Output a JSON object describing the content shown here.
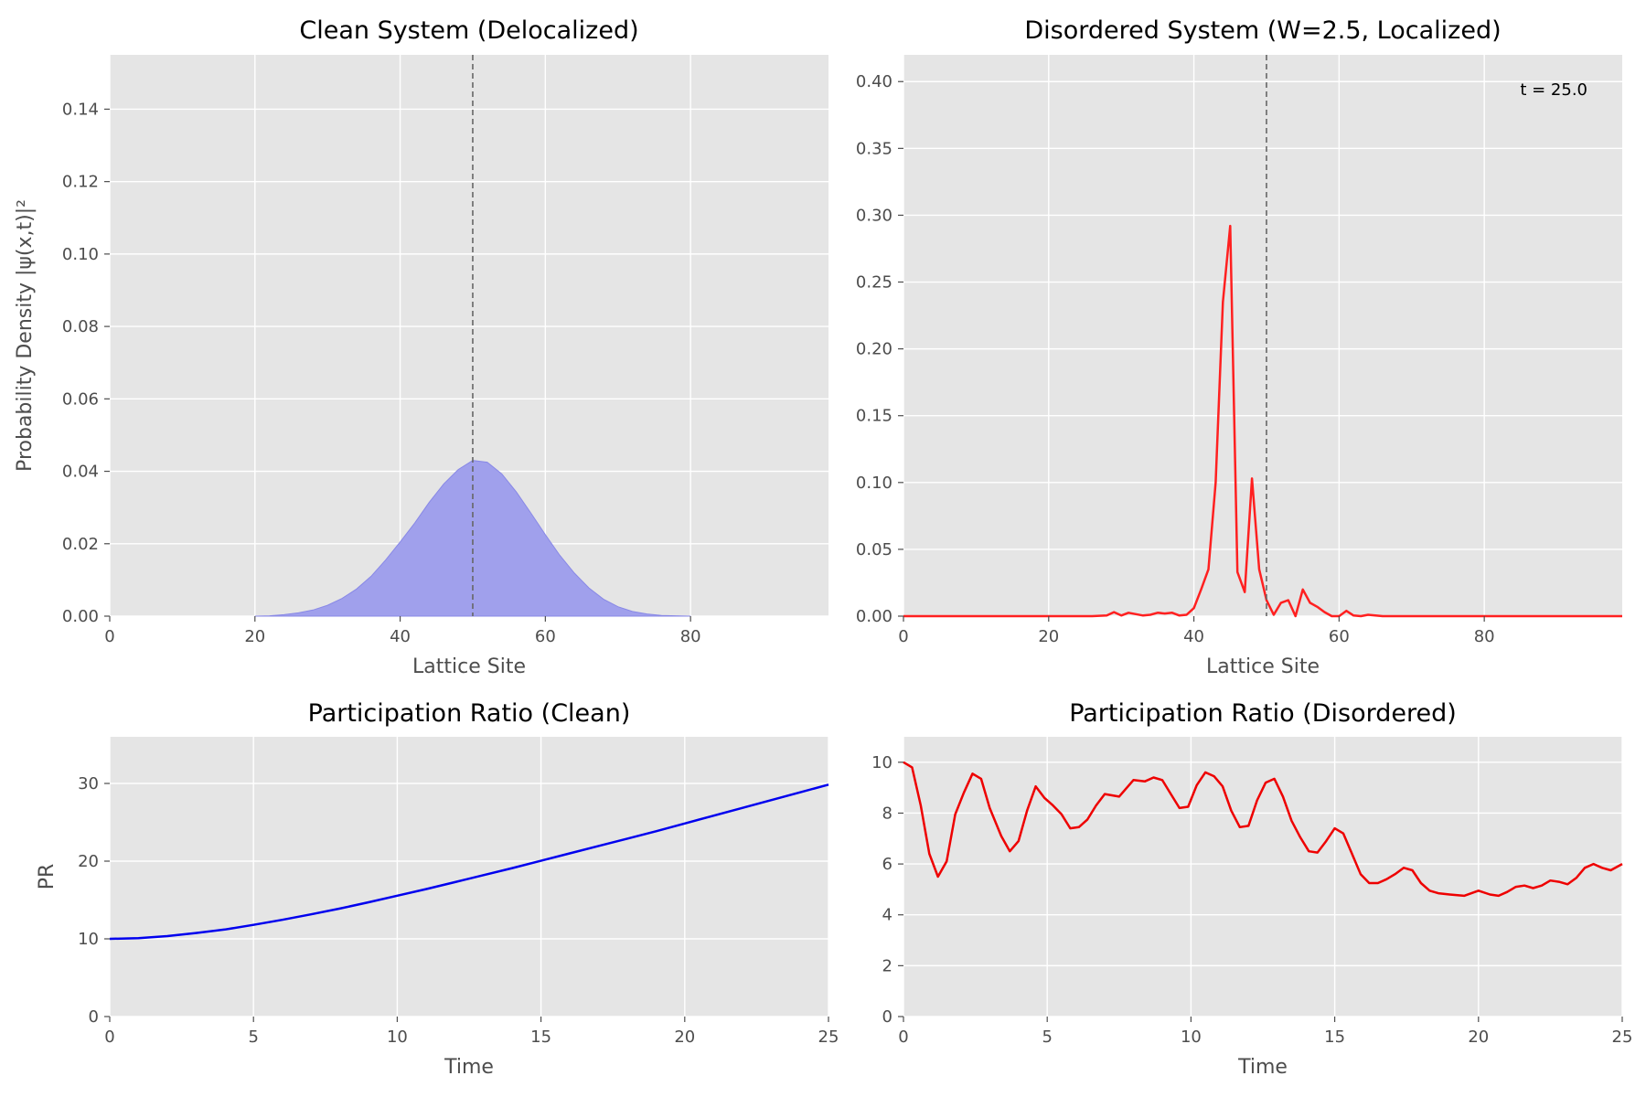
{
  "figure": {
    "colors": {
      "panel_bg": "#e5e5e5",
      "grid": "#ffffff",
      "tick_text": "#4d4d4d",
      "clean_fill": "#a0a0ec",
      "clean_edge": "#8888e6",
      "disordered_line": "#ff2020",
      "clean_pr_line": "#0000ee",
      "disordered_pr_line": "#ee0000",
      "marker_line": "#666666"
    }
  },
  "chart_data": [
    {
      "id": "clean-density",
      "type": "area",
      "title": "Clean System (Delocalized)",
      "xlabel": "Lattice Site",
      "ylabel": "Probability Density |ψ(x,t)|²",
      "xlim": [
        0,
        99
      ],
      "ylim": [
        0,
        0.155
      ],
      "xticks": [
        0,
        20,
        40,
        60,
        80
      ],
      "xtick_labels": [
        "0",
        "20",
        "40",
        "60",
        "80"
      ],
      "yticks": [
        0,
        0.02,
        0.04,
        0.06,
        0.08,
        0.1,
        0.12,
        0.14
      ],
      "ytick_labels": [
        "0.00",
        "0.02",
        "0.04",
        "0.06",
        "0.08",
        "0.10",
        "0.12",
        "0.14"
      ],
      "grid": true,
      "vline_x": 50,
      "series": [
        {
          "x": [
            20,
            22,
            24,
            26,
            28,
            30,
            32,
            34,
            36,
            38,
            40,
            42,
            44,
            46,
            48,
            50,
            52,
            54,
            56,
            58,
            60,
            62,
            64,
            66,
            68,
            70,
            72,
            74,
            76,
            78,
            80
          ],
          "values": [
            0.0,
            0.0001,
            0.0004,
            0.0009,
            0.0017,
            0.003,
            0.0049,
            0.0075,
            0.011,
            0.0155,
            0.0205,
            0.0257,
            0.0314,
            0.0365,
            0.0405,
            0.043,
            0.0425,
            0.0393,
            0.0343,
            0.0285,
            0.0225,
            0.0168,
            0.0119,
            0.0078,
            0.0047,
            0.0026,
            0.0013,
            0.0006,
            0.0002,
            0.0001,
            0.0
          ]
        }
      ]
    },
    {
      "id": "disordered-density",
      "type": "line",
      "title": "Disordered System (W=2.5, Localized)",
      "xlabel": "Lattice Site",
      "ylabel": "",
      "xlim": [
        0,
        99
      ],
      "ylim": [
        0,
        0.42
      ],
      "xticks": [
        0,
        20,
        40,
        60,
        80
      ],
      "xtick_labels": [
        "0",
        "20",
        "40",
        "60",
        "80"
      ],
      "yticks": [
        0,
        0.05,
        0.1,
        0.15,
        0.2,
        0.25,
        0.3,
        0.35,
        0.4
      ],
      "ytick_labels": [
        "0.00",
        "0.05",
        "0.10",
        "0.15",
        "0.20",
        "0.25",
        "0.30",
        "0.35",
        "0.40"
      ],
      "grid": true,
      "vline_x": 50,
      "annotation": "t = 25.0",
      "series": [
        {
          "x": [
            0,
            10,
            20,
            26,
            28,
            29,
            30,
            31,
            32,
            33,
            34,
            35,
            36,
            37,
            38,
            39,
            40,
            41,
            42,
            43,
            44,
            45,
            46,
            47,
            48,
            49,
            50,
            51,
            52,
            53,
            54,
            55,
            56,
            57,
            58,
            59,
            60,
            61,
            62,
            63,
            64,
            66,
            70,
            80,
            99
          ],
          "values": [
            0.0,
            0.0,
            0.0,
            0.0,
            0.0005,
            0.003,
            0.0005,
            0.0025,
            0.0015,
            0.0005,
            0.001,
            0.0025,
            0.002,
            0.0025,
            0.0005,
            0.001,
            0.006,
            0.02,
            0.035,
            0.1,
            0.235,
            0.292,
            0.033,
            0.018,
            0.103,
            0.035,
            0.012,
            0.001,
            0.01,
            0.012,
            0.0,
            0.02,
            0.01,
            0.007,
            0.003,
            0.0,
            0.0,
            0.004,
            0.0005,
            0.0,
            0.001,
            0.0,
            0.0,
            0.0,
            0.0
          ]
        }
      ]
    },
    {
      "id": "clean-pr",
      "type": "line",
      "title": "Participation Ratio (Clean)",
      "xlabel": "Time",
      "ylabel": "PR",
      "xlim": [
        0,
        25
      ],
      "ylim": [
        0,
        36
      ],
      "xticks": [
        0,
        5,
        10,
        15,
        20,
        25
      ],
      "xtick_labels": [
        "0",
        "5",
        "10",
        "15",
        "20",
        "25"
      ],
      "yticks": [
        0,
        10,
        20,
        30
      ],
      "ytick_labels": [
        "0",
        "10",
        "20",
        "30"
      ],
      "grid": true,
      "series": [
        {
          "x": [
            0,
            1,
            2,
            3,
            4,
            5,
            6,
            7,
            8,
            9,
            10,
            11,
            12,
            13,
            14,
            15,
            16,
            17,
            18,
            19,
            20,
            21,
            22,
            23,
            24,
            25
          ],
          "values": [
            10.0,
            10.1,
            10.35,
            10.75,
            11.2,
            11.8,
            12.45,
            13.15,
            13.9,
            14.7,
            15.55,
            16.4,
            17.3,
            18.2,
            19.1,
            20.05,
            21.0,
            21.95,
            22.9,
            23.85,
            24.85,
            25.85,
            26.85,
            27.85,
            28.85,
            29.85
          ]
        }
      ]
    },
    {
      "id": "disordered-pr",
      "type": "line",
      "title": "Participation Ratio (Disordered)",
      "xlabel": "Time",
      "ylabel": "",
      "xlim": [
        0,
        25
      ],
      "ylim": [
        0,
        11
      ],
      "xticks": [
        0,
        5,
        10,
        15,
        20,
        25
      ],
      "xtick_labels": [
        "0",
        "5",
        "10",
        "15",
        "20",
        "25"
      ],
      "yticks": [
        0,
        2,
        4,
        6,
        8,
        10
      ],
      "ytick_labels": [
        "0",
        "2",
        "4",
        "6",
        "8",
        "10"
      ],
      "grid": true,
      "series": [
        {
          "x": [
            0,
            0.3,
            0.6,
            0.9,
            1.2,
            1.5,
            1.8,
            2.1,
            2.4,
            2.7,
            3.0,
            3.4,
            3.7,
            4.0,
            4.3,
            4.6,
            4.9,
            5.2,
            5.5,
            5.8,
            6.1,
            6.4,
            6.7,
            7.0,
            7.5,
            8.0,
            8.4,
            8.7,
            9.0,
            9.3,
            9.6,
            9.9,
            10.2,
            10.5,
            10.8,
            11.1,
            11.4,
            11.7,
            12.0,
            12.3,
            12.6,
            12.9,
            13.2,
            13.5,
            13.8,
            14.1,
            14.4,
            14.7,
            15.0,
            15.3,
            15.6,
            15.9,
            16.2,
            16.5,
            16.8,
            17.1,
            17.4,
            17.7,
            18.0,
            18.3,
            18.6,
            19.0,
            19.5,
            20.0,
            20.4,
            20.7,
            21.0,
            21.3,
            21.6,
            21.9,
            22.2,
            22.5,
            22.8,
            23.1,
            23.4,
            23.7,
            24.0,
            24.3,
            24.6,
            25.0
          ],
          "values": [
            10.0,
            9.8,
            8.3,
            6.4,
            5.5,
            6.1,
            7.95,
            8.8,
            9.55,
            9.35,
            8.2,
            7.1,
            6.5,
            6.9,
            8.1,
            9.05,
            8.6,
            8.3,
            7.95,
            7.4,
            7.45,
            7.75,
            8.3,
            8.75,
            8.65,
            9.3,
            9.25,
            9.4,
            9.3,
            8.75,
            8.2,
            8.25,
            9.1,
            9.6,
            9.45,
            9.05,
            8.1,
            7.45,
            7.5,
            8.5,
            9.2,
            9.35,
            8.65,
            7.7,
            7.05,
            6.5,
            6.45,
            6.9,
            7.4,
            7.2,
            6.4,
            5.6,
            5.25,
            5.25,
            5.4,
            5.6,
            5.85,
            5.75,
            5.25,
            4.95,
            4.85,
            4.8,
            4.75,
            4.95,
            4.8,
            4.75,
            4.9,
            5.1,
            5.15,
            5.05,
            5.15,
            5.35,
            5.3,
            5.2,
            5.45,
            5.85,
            6.0,
            5.85,
            5.75,
            6.0
          ]
        }
      ]
    }
  ]
}
